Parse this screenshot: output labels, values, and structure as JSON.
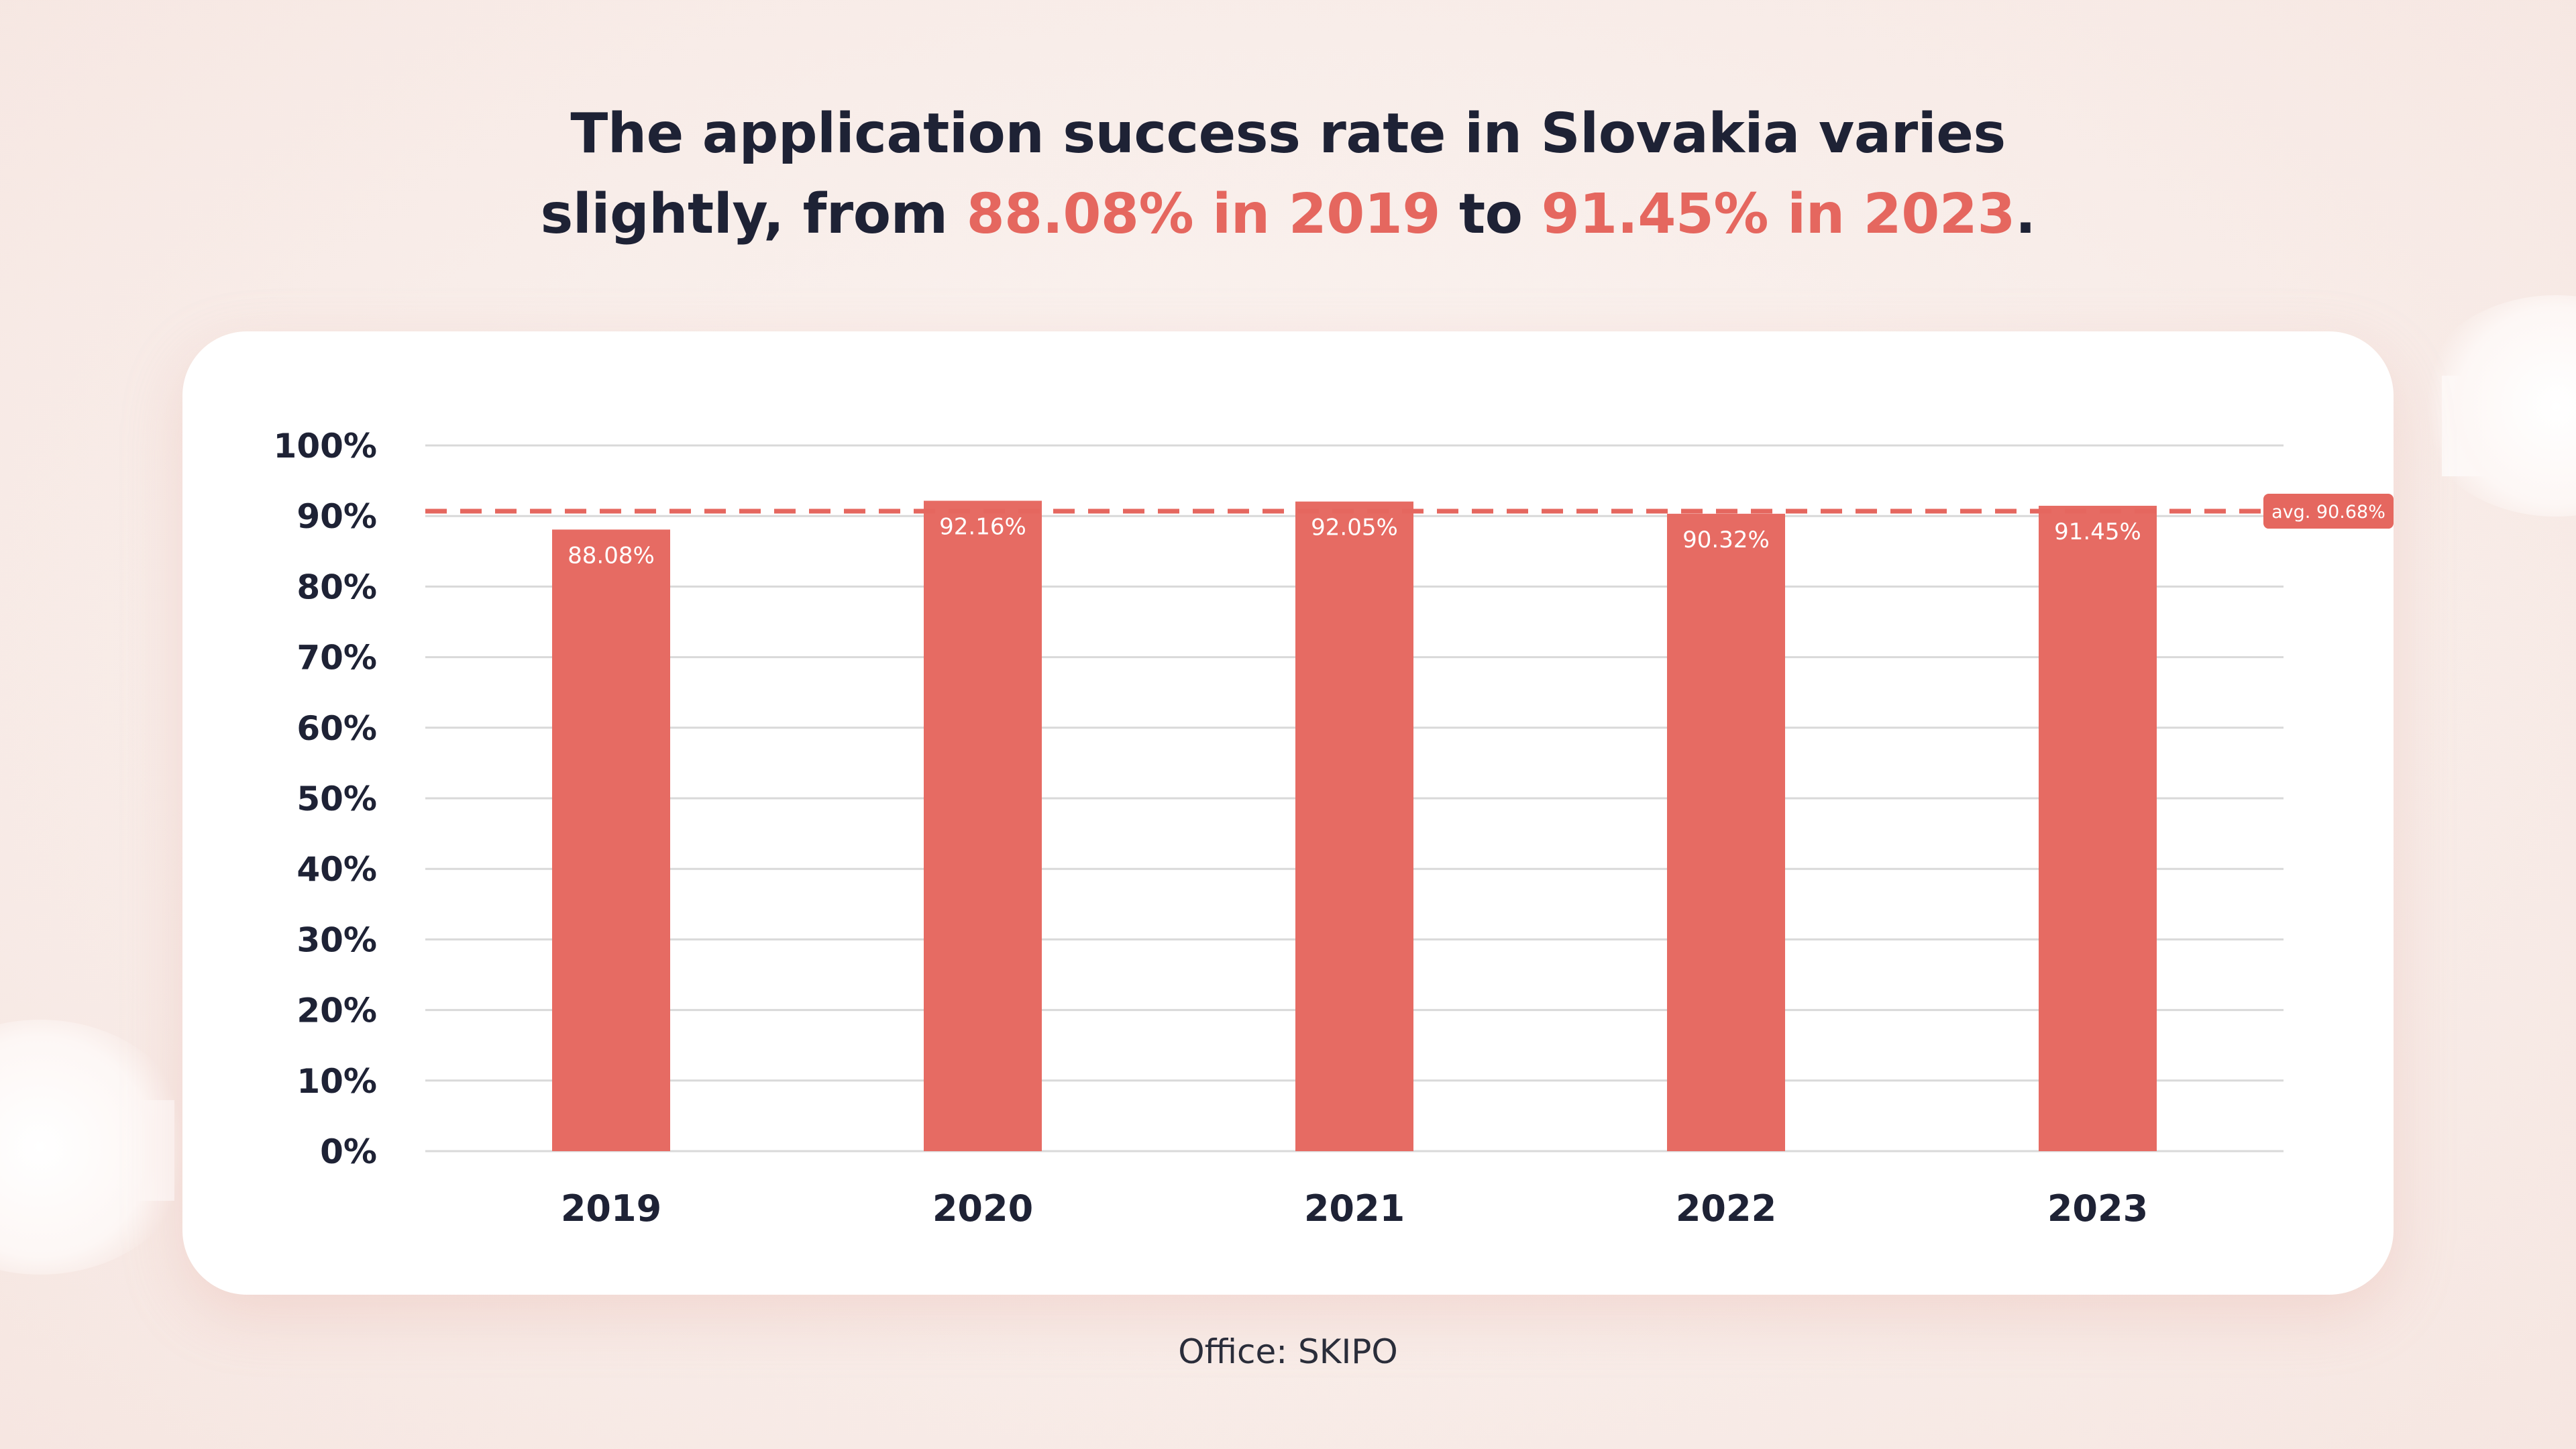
{
  "header": {
    "title_line1": "The application success rate in Slovakia varies",
    "title_line2_prefix": "slightly, from ",
    "title_highlight1": "88.08% in 2019",
    "title_middle": " to ",
    "title_highlight2": "91.45% in 2023",
    "title_suffix": "."
  },
  "footer": {
    "source": "Office: SKIPO"
  },
  "colors": {
    "bar": "#e66b63",
    "highlight": "#e5675f",
    "average_line": "#e5675f",
    "grid": "#d9d9d9",
    "text": "#1e2235"
  },
  "chart_data": {
    "type": "bar",
    "categories": [
      "2019",
      "2020",
      "2021",
      "2022",
      "2023"
    ],
    "values": [
      88.08,
      92.16,
      92.05,
      90.32,
      91.45
    ],
    "value_labels": [
      "88.08%",
      "92.16%",
      "92.05%",
      "90.32%",
      "91.45%"
    ],
    "y_ticks": [
      0,
      10,
      20,
      30,
      40,
      50,
      60,
      70,
      80,
      90,
      100
    ],
    "y_tick_labels": [
      "0%",
      "10%",
      "20%",
      "30%",
      "40%",
      "50%",
      "60%",
      "70%",
      "80%",
      "90%",
      "100%"
    ],
    "ylim": [
      0,
      100
    ],
    "grid": true,
    "average": {
      "value": 90.68,
      "label": "avg. 90.68%"
    },
    "title": "",
    "xlabel": "",
    "ylabel": ""
  }
}
